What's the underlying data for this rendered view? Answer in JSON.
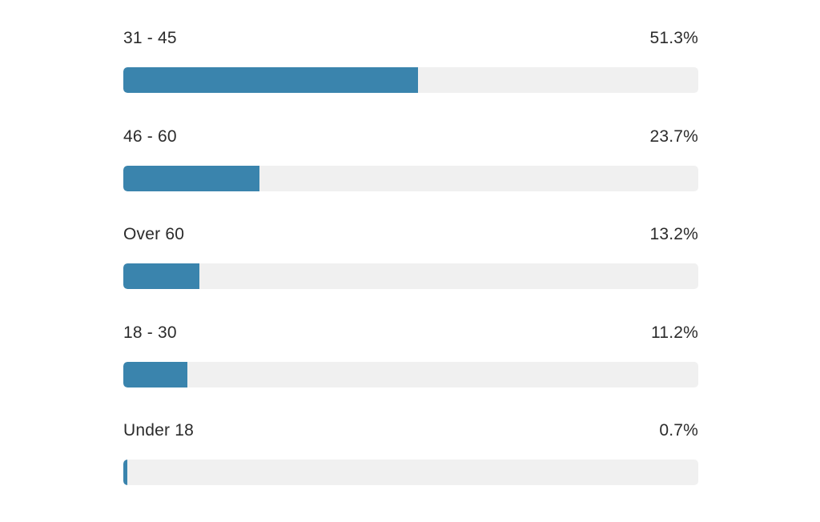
{
  "chart_data": {
    "type": "bar",
    "orientation": "horizontal",
    "categories": [
      "31 - 45",
      "46 - 60",
      "Over 60",
      "18 - 30",
      "Under 18"
    ],
    "values": [
      51.3,
      23.7,
      13.2,
      11.2,
      0.7
    ],
    "value_labels": [
      "51.3%",
      "23.7%",
      "13.2%",
      "11.2%",
      "0.7%"
    ],
    "xlim": [
      0,
      100
    ],
    "unit": "%",
    "grid": false,
    "legend": "none",
    "colors": {
      "bar": "#3a84ad",
      "track": "#f0f0f0",
      "text": "#2b2b2b"
    }
  }
}
